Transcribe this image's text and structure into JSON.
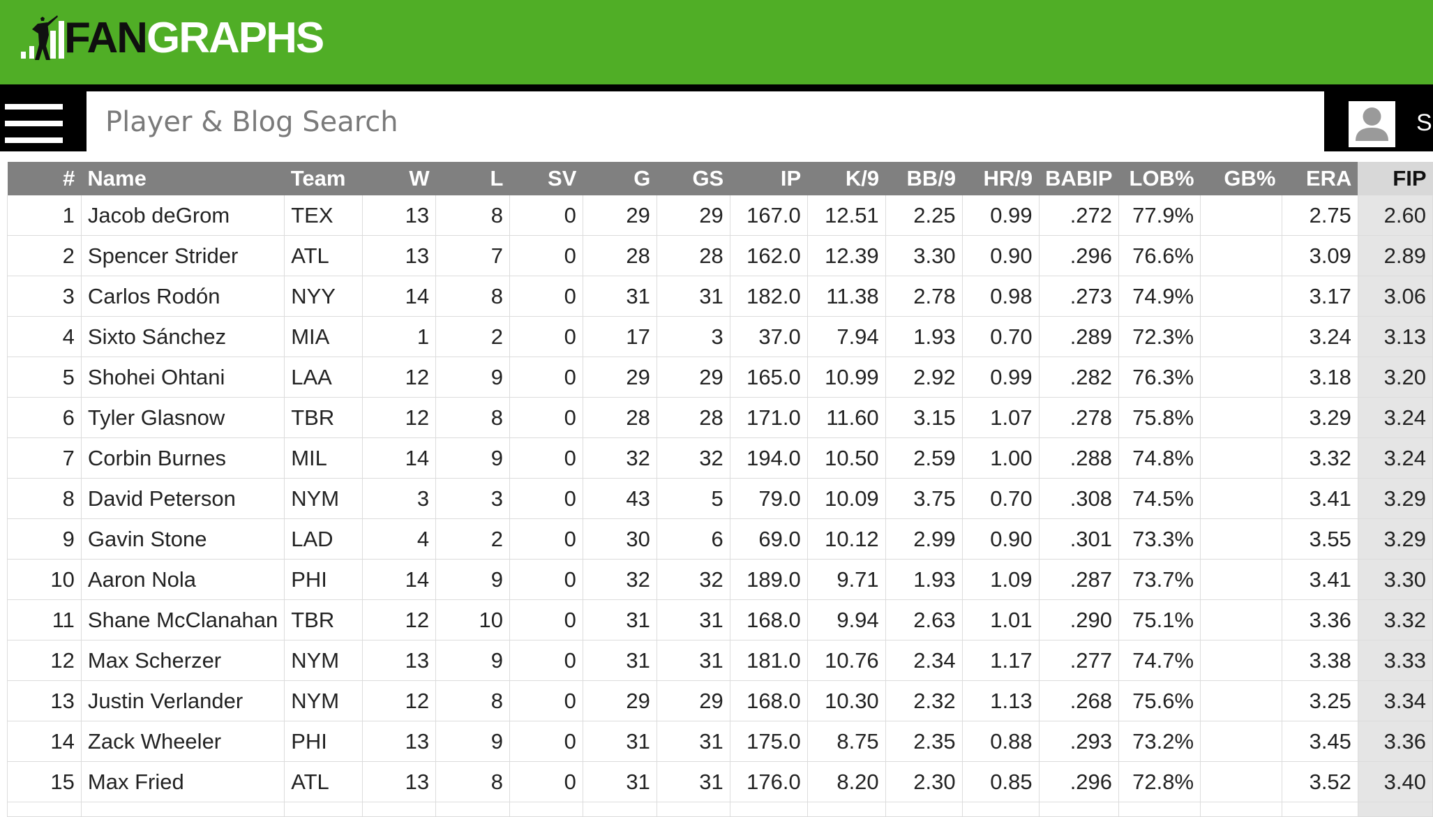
{
  "header": {
    "logo_fan": "FAN",
    "logo_graphs": "GRAPHS",
    "brand_color": "#50ae26"
  },
  "nav": {
    "search_placeholder": "Player & Blog Search",
    "menu_icon": "hamburger-menu-icon",
    "account_icon": "user-icon",
    "truncated_label": "S"
  },
  "table": {
    "columns": [
      "#",
      "Name",
      "Team",
      "W",
      "L",
      "SV",
      "G",
      "GS",
      "IP",
      "K/9",
      "BB/9",
      "HR/9",
      "BABIP",
      "LOB%",
      "GB%",
      "ERA",
      "FIP"
    ],
    "sorted_column": "FIP",
    "rows": [
      [
        "1",
        "Jacob deGrom",
        "TEX",
        "13",
        "8",
        "0",
        "29",
        "29",
        "167.0",
        "12.51",
        "2.25",
        "0.99",
        ".272",
        "77.9%",
        "",
        "2.75",
        "2.60"
      ],
      [
        "2",
        "Spencer Strider",
        "ATL",
        "13",
        "7",
        "0",
        "28",
        "28",
        "162.0",
        "12.39",
        "3.30",
        "0.90",
        ".296",
        "76.6%",
        "",
        "3.09",
        "2.89"
      ],
      [
        "3",
        "Carlos Rodón",
        "NYY",
        "14",
        "8",
        "0",
        "31",
        "31",
        "182.0",
        "11.38",
        "2.78",
        "0.98",
        ".273",
        "74.9%",
        "",
        "3.17",
        "3.06"
      ],
      [
        "4",
        "Sixto Sánchez",
        "MIA",
        "1",
        "2",
        "0",
        "17",
        "3",
        "37.0",
        "7.94",
        "1.93",
        "0.70",
        ".289",
        "72.3%",
        "",
        "3.24",
        "3.13"
      ],
      [
        "5",
        "Shohei Ohtani",
        "LAA",
        "12",
        "9",
        "0",
        "29",
        "29",
        "165.0",
        "10.99",
        "2.92",
        "0.99",
        ".282",
        "76.3%",
        "",
        "3.18",
        "3.20"
      ],
      [
        "6",
        "Tyler Glasnow",
        "TBR",
        "12",
        "8",
        "0",
        "28",
        "28",
        "171.0",
        "11.60",
        "3.15",
        "1.07",
        ".278",
        "75.8%",
        "",
        "3.29",
        "3.24"
      ],
      [
        "7",
        "Corbin Burnes",
        "MIL",
        "14",
        "9",
        "0",
        "32",
        "32",
        "194.0",
        "10.50",
        "2.59",
        "1.00",
        ".288",
        "74.8%",
        "",
        "3.32",
        "3.24"
      ],
      [
        "8",
        "David Peterson",
        "NYM",
        "3",
        "3",
        "0",
        "43",
        "5",
        "79.0",
        "10.09",
        "3.75",
        "0.70",
        ".308",
        "74.5%",
        "",
        "3.41",
        "3.29"
      ],
      [
        "9",
        "Gavin Stone",
        "LAD",
        "4",
        "2",
        "0",
        "30",
        "6",
        "69.0",
        "10.12",
        "2.99",
        "0.90",
        ".301",
        "73.3%",
        "",
        "3.55",
        "3.29"
      ],
      [
        "10",
        "Aaron Nola",
        "PHI",
        "14",
        "9",
        "0",
        "32",
        "32",
        "189.0",
        "9.71",
        "1.93",
        "1.09",
        ".287",
        "73.7%",
        "",
        "3.41",
        "3.30"
      ],
      [
        "11",
        "Shane McClanahan",
        "TBR",
        "12",
        "10",
        "0",
        "31",
        "31",
        "168.0",
        "9.94",
        "2.63",
        "1.01",
        ".290",
        "75.1%",
        "",
        "3.36",
        "3.32"
      ],
      [
        "12",
        "Max Scherzer",
        "NYM",
        "13",
        "9",
        "0",
        "31",
        "31",
        "181.0",
        "10.76",
        "2.34",
        "1.17",
        ".277",
        "74.7%",
        "",
        "3.38",
        "3.33"
      ],
      [
        "13",
        "Justin Verlander",
        "NYM",
        "12",
        "8",
        "0",
        "29",
        "29",
        "168.0",
        "10.30",
        "2.32",
        "1.13",
        ".268",
        "75.6%",
        "",
        "3.25",
        "3.34"
      ],
      [
        "14",
        "Zack Wheeler",
        "PHI",
        "13",
        "9",
        "0",
        "31",
        "31",
        "175.0",
        "8.75",
        "2.35",
        "0.88",
        ".293",
        "73.2%",
        "",
        "3.45",
        "3.36"
      ],
      [
        "15",
        "Max Fried",
        "ATL",
        "13",
        "8",
        "0",
        "31",
        "31",
        "176.0",
        "8.20",
        "2.30",
        "0.85",
        ".296",
        "72.8%",
        "",
        "3.52",
        "3.40"
      ]
    ]
  }
}
